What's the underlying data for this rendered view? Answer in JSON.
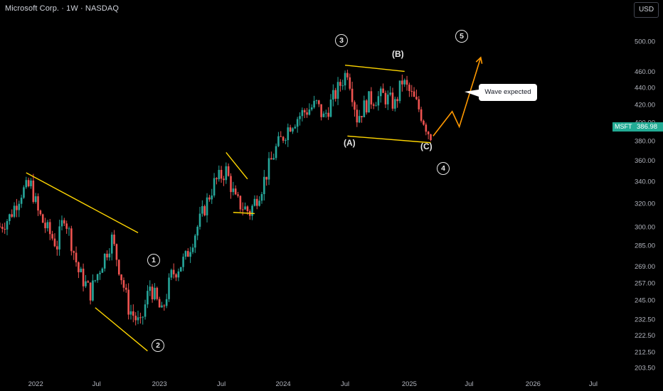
{
  "header": {
    "title": "Microsoft Corp. · 1W · NASDAQ",
    "currency_button": "USD"
  },
  "last_price": {
    "symbol": "MSFT",
    "value": "386.98"
  },
  "callout": {
    "text": "Wave expected"
  },
  "wave_labels": [
    {
      "name": "wave-1-label",
      "text": "1",
      "style": "circle"
    },
    {
      "name": "wave-2-label",
      "text": "2",
      "style": "circle"
    },
    {
      "name": "wave-3-label",
      "text": "3",
      "style": "circle"
    },
    {
      "name": "wave-4-label",
      "text": "4",
      "style": "circle"
    },
    {
      "name": "wave-5-label",
      "text": "5",
      "style": "circle"
    },
    {
      "name": "wave-a-label",
      "text": "(A)",
      "style": "plain"
    },
    {
      "name": "wave-b-label",
      "text": "(B)",
      "style": "plain"
    },
    {
      "name": "wave-c-label",
      "text": "(C)",
      "style": "plain"
    }
  ],
  "colors": {
    "background": "#000000",
    "up": "#26a69a",
    "down": "#ef5350",
    "trendline": "#ffd600",
    "projection": "#ff9800",
    "last_price_bg": "#22ab94"
  },
  "chart_data": {
    "type": "candlestick",
    "title": "Microsoft Corp. · 1W · NASDAQ",
    "ylabel": "",
    "xlabel": "",
    "yscale": "log",
    "ylim": [
      198,
      560
    ],
    "xlim": [
      "2021-09-20",
      "2026-10-20"
    ],
    "y_ticks": [
      "500.00",
      "460.00",
      "440.00",
      "420.00",
      "400.00",
      "380.00",
      "360.00",
      "340.00",
      "320.00",
      "300.00",
      "285.00",
      "269.00",
      "257.00",
      "245.00",
      "232.50",
      "222.50",
      "212.50",
      "203.50"
    ],
    "x_ticks": [
      {
        "label": "2022",
        "date": "2022-01-03"
      },
      {
        "label": "Jul",
        "date": "2022-07-01"
      },
      {
        "label": "2023",
        "date": "2023-01-02"
      },
      {
        "label": "Jul",
        "date": "2023-07-03"
      },
      {
        "label": "2024",
        "date": "2024-01-01"
      },
      {
        "label": "Jul",
        "date": "2024-07-01"
      },
      {
        "label": "2025",
        "date": "2025-01-06"
      },
      {
        "label": "Jul",
        "date": "2025-07-01"
      },
      {
        "label": "2026",
        "date": "2026-01-05"
      },
      {
        "label": "Jul",
        "date": "2026-07-01"
      }
    ],
    "start_date": "2021-09-20",
    "start_price": 300,
    "series": [
      {
        "name": "MSFT",
        "close_waypoints": [
          [
            "2021-09-20",
            300
          ],
          [
            "2021-10-18",
            308
          ],
          [
            "2021-11-22",
            330
          ],
          [
            "2021-12-20",
            336
          ],
          [
            "2022-01-10",
            312
          ],
          [
            "2022-01-31",
            300
          ],
          [
            "2022-03-07",
            285
          ],
          [
            "2022-03-28",
            310
          ],
          [
            "2022-05-09",
            265
          ],
          [
            "2022-06-13",
            250
          ],
          [
            "2022-08-15",
            290
          ],
          [
            "2022-10-03",
            240
          ],
          [
            "2022-11-07",
            228
          ],
          [
            "2022-12-05",
            255
          ],
          [
            "2023-01-09",
            236
          ],
          [
            "2023-02-06",
            262
          ],
          [
            "2023-03-20",
            275
          ],
          [
            "2023-05-01",
            305
          ],
          [
            "2023-06-12",
            338
          ],
          [
            "2023-07-17",
            350
          ],
          [
            "2023-08-14",
            322
          ],
          [
            "2023-09-25",
            312
          ],
          [
            "2023-10-30",
            335
          ],
          [
            "2023-12-11",
            372
          ],
          [
            "2024-01-22",
            398
          ],
          [
            "2024-02-26",
            410
          ],
          [
            "2024-04-08",
            420
          ],
          [
            "2024-04-29",
            405
          ],
          [
            "2024-06-10",
            438
          ],
          [
            "2024-07-08",
            462
          ],
          [
            "2024-08-05",
            405
          ],
          [
            "2024-09-09",
            425
          ],
          [
            "2024-10-21",
            430
          ],
          [
            "2024-11-25",
            420
          ],
          [
            "2024-12-16",
            448
          ],
          [
            "2025-01-13",
            430
          ],
          [
            "2025-02-03",
            415
          ],
          [
            "2025-03-03",
            390
          ],
          [
            "2025-03-10",
            387
          ]
        ]
      }
    ],
    "trendlines": [
      {
        "from": [
          "2021-12-06",
          348
        ],
        "to": [
          "2022-10-31",
          295
        ]
      },
      {
        "from": [
          "2022-06-27",
          240
        ],
        "to": [
          "2022-11-28",
          213
        ]
      },
      {
        "from": [
          "2023-07-17",
          368
        ],
        "to": [
          "2023-09-18",
          342
        ]
      },
      {
        "from": [
          "2023-08-07",
          312
        ],
        "to": [
          "2023-10-09",
          311
        ]
      },
      {
        "from": [
          "2024-07-01",
          468
        ],
        "to": [
          "2024-12-23",
          460
        ]
      },
      {
        "from": [
          "2024-07-08",
          385
        ],
        "to": [
          "2025-03-10",
          378
        ]
      }
    ],
    "projection": [
      [
        "2025-03-17",
        385
      ],
      [
        "2025-05-12",
        412
      ],
      [
        "2025-06-02",
        395
      ],
      [
        "2025-08-04",
        478
      ]
    ],
    "last_price": 386.98
  }
}
